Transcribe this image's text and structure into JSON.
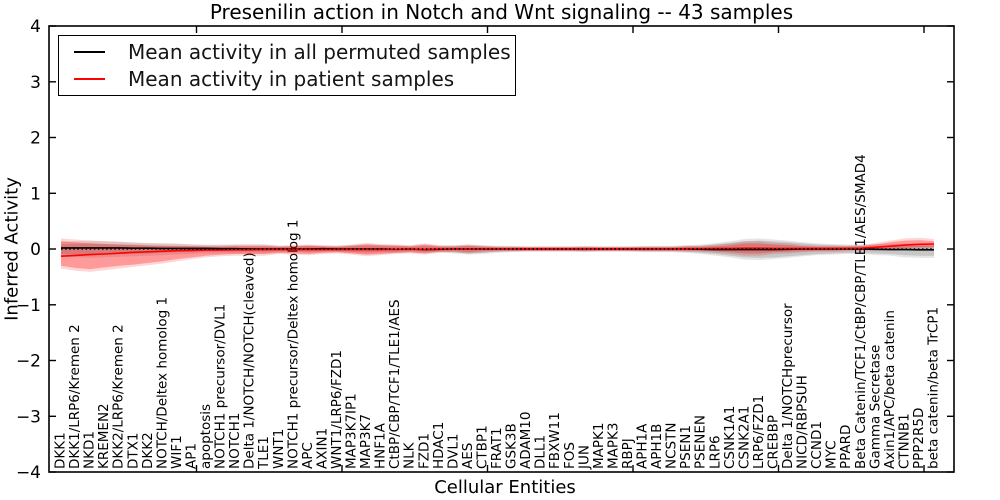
{
  "chart_data": {
    "type": "line",
    "title": "Presenilin action in Notch and Wnt signaling -- 43 samples",
    "xlabel": "Cellular Entities",
    "ylabel": "Inferred Activity",
    "ylim": [
      -4,
      4
    ],
    "yticks": [
      4,
      3,
      2,
      1,
      0,
      -1,
      -2,
      -3,
      -4
    ],
    "ytick_labels": [
      "4",
      "3",
      "2",
      "1",
      "0",
      "−1",
      "−2",
      "−3",
      "−4"
    ],
    "grid": false,
    "legend_position": "upper left",
    "zero_line": {
      "y": 0,
      "style": "dotted",
      "color": "#000000"
    },
    "categories": [
      "DKK1",
      "DKK1/LRP6/Kremen 2",
      "NKD1",
      "KREMEN2",
      "DKK2/LRP6/Kremen 2",
      "DTX1",
      "DKK2",
      "NOTCH/Deltex homolog 1",
      "WIF1",
      "AP1",
      "apoptosis",
      "NOTCH1 precursor/DVL1",
      "NOTCH1",
      "Delta 1/NOTCH/NOTCH(cleaved)",
      "TLE1",
      "WNT1",
      "NOTCH1 precursor/Deltex homolog 1",
      "APC",
      "AXIN1",
      "WNT1/LRP6/FZD1",
      "MAP3K7IP1",
      "MAP3K7",
      "HNF1A",
      "CtBP/CBP/TCF1/TLE1/AES",
      "NLK",
      "FZD1",
      "HDAC1",
      "DVL1",
      "AES",
      "CTBP1",
      "FRAT1",
      "GSK3B",
      "ADAM10",
      "DLL1",
      "FBXW11",
      "FOS",
      "JUN",
      "MAPK1",
      "MAPK3",
      "RBPJ",
      "APH1A",
      "APH1B",
      "NCSTN",
      "PSEN1",
      "PSENEN",
      "LRP6",
      "CSNK1A1",
      "CSNK2A1",
      "LRP6/FZD1",
      "CREBBP",
      "Delta 1/NOTCHprecursor",
      "NICD/RBPSUH",
      "CCND1",
      "MYC",
      "PPARD",
      "Beta Catenin/TCF1/CtBP/CBP/TLE1/AES/SMAD4",
      "Gamma Secretase",
      "Axin1/APC/beta catenin",
      "CTNNB1",
      "PPP2R5D",
      "beta catenin/beta TrCP1"
    ],
    "series": [
      {
        "name": "Mean activity in all permuted samples",
        "color": "#000000",
        "band_fill_inner": "rgba(0,0,0,0.13)",
        "band_fill_outer": "rgba(0,0,0,0.10)",
        "values": [
          0.02,
          0.02,
          0.02,
          0.02,
          0.02,
          0.015,
          0.015,
          0.01,
          0.01,
          0.01,
          0.01,
          0.005,
          0.005,
          0,
          0,
          0,
          0,
          0,
          0.005,
          0,
          0,
          0,
          0,
          -0.005,
          0,
          -0.01,
          -0.005,
          0,
          0,
          0,
          0,
          0,
          0,
          0,
          0,
          0,
          0,
          0,
          0,
          0,
          0,
          0,
          0,
          0,
          -0.005,
          -0.01,
          -0.01,
          -0.01,
          -0.01,
          -0.01,
          -0.005,
          0,
          0,
          0,
          0,
          0,
          -0.005,
          -0.01,
          -0.01,
          -0.015,
          -0.015
        ],
        "band_upper": [
          0.08,
          0.09,
          0.1,
          0.09,
          0.08,
          0.08,
          0.07,
          0.06,
          0.06,
          0.05,
          0.05,
          0.05,
          0.05,
          0.05,
          0.05,
          0.04,
          0.04,
          0.05,
          0.04,
          0.04,
          0.05,
          0.06,
          0.05,
          0.05,
          0.04,
          0.05,
          0.04,
          0.05,
          0.06,
          0.05,
          0.04,
          0.04,
          0.03,
          0.03,
          0.03,
          0.03,
          0.04,
          0.03,
          0.03,
          0.03,
          0.04,
          0.04,
          0.04,
          0.05,
          0.06,
          0.08,
          0.11,
          0.14,
          0.15,
          0.14,
          0.12,
          0.1,
          0.08,
          0.07,
          0.06,
          0.06,
          0.06,
          0.06,
          0.06,
          0.06,
          0.06
        ],
        "band_lower": [
          -0.09,
          -0.1,
          -0.11,
          -0.1,
          -0.09,
          -0.09,
          -0.08,
          -0.07,
          -0.06,
          -0.06,
          -0.05,
          -0.05,
          -0.05,
          -0.05,
          -0.05,
          -0.04,
          -0.04,
          -0.05,
          -0.04,
          -0.04,
          -0.05,
          -0.06,
          -0.05,
          -0.05,
          -0.04,
          -0.05,
          -0.04,
          -0.06,
          -0.08,
          -0.07,
          -0.05,
          -0.04,
          -0.03,
          -0.03,
          -0.03,
          -0.03,
          -0.04,
          -0.03,
          -0.03,
          -0.03,
          -0.04,
          -0.04,
          -0.04,
          -0.05,
          -0.07,
          -0.09,
          -0.12,
          -0.15,
          -0.16,
          -0.15,
          -0.13,
          -0.11,
          -0.09,
          -0.08,
          -0.07,
          -0.07,
          -0.08,
          -0.09,
          -0.11,
          -0.12,
          -0.12
        ]
      },
      {
        "name": "Mean activity in patient samples",
        "color": "#ff0000",
        "band_fill_inner": "rgba(255,0,0,0.28)",
        "band_fill_outer": "rgba(255,0,0,0.16)",
        "values": [
          -0.13,
          -0.115,
          -0.1,
          -0.09,
          -0.075,
          -0.06,
          -0.05,
          -0.04,
          -0.03,
          -0.025,
          -0.02,
          -0.02,
          -0.015,
          -0.015,
          -0.01,
          -0.01,
          -0.01,
          -0.01,
          -0.01,
          -0.01,
          -0.01,
          -0.01,
          -0.01,
          -0.005,
          -0.005,
          -0.005,
          0,
          0,
          0,
          0,
          0,
          0,
          0,
          0,
          0,
          0,
          0,
          0,
          0,
          0,
          0,
          0,
          0,
          0.005,
          0.005,
          0.01,
          0.01,
          0.015,
          0.015,
          0.01,
          0.01,
          0.01,
          0.01,
          0.01,
          0.01,
          0.015,
          0.03,
          0.05,
          0.07,
          0.085,
          0.09
        ],
        "band_upper": [
          0.14,
          0.12,
          0.1,
          0.09,
          0.08,
          0.07,
          0.06,
          0.06,
          0.05,
          0.05,
          0.04,
          0.04,
          0.05,
          0.05,
          0.05,
          0.04,
          0.05,
          0.06,
          0.05,
          0.04,
          0.06,
          0.08,
          0.07,
          0.06,
          0.05,
          0.08,
          0.05,
          0.04,
          0.06,
          0.04,
          0.03,
          0.03,
          0.03,
          0.03,
          0.03,
          0.03,
          0.03,
          0.03,
          0.03,
          0.03,
          0.03,
          0.03,
          0.03,
          0.04,
          0.04,
          0.05,
          0.07,
          0.1,
          0.1,
          0.08,
          0.07,
          0.05,
          0.04,
          0.04,
          0.04,
          0.05,
          0.08,
          0.12,
          0.15,
          0.16,
          0.14
        ],
        "band_lower": [
          -0.3,
          -0.34,
          -0.36,
          -0.33,
          -0.3,
          -0.28,
          -0.25,
          -0.22,
          -0.18,
          -0.15,
          -0.12,
          -0.1,
          -0.09,
          -0.09,
          -0.09,
          -0.07,
          -0.08,
          -0.09,
          -0.07,
          -0.06,
          -0.08,
          -0.1,
          -0.09,
          -0.07,
          -0.06,
          -0.08,
          -0.05,
          -0.04,
          -0.06,
          -0.04,
          -0.03,
          -0.03,
          -0.03,
          -0.03,
          -0.03,
          -0.03,
          -0.03,
          -0.03,
          -0.03,
          -0.03,
          -0.03,
          -0.03,
          -0.03,
          -0.03,
          -0.03,
          -0.04,
          -0.06,
          -0.08,
          -0.08,
          -0.06,
          -0.05,
          -0.04,
          -0.03,
          -0.03,
          -0.02,
          -0.01,
          0,
          0.01,
          0.02,
          0.03,
          0.03
        ]
      }
    ],
    "band_outer_pad": [
      0.05,
      0.05,
      0.05,
      0.05,
      0.05,
      0.04,
      0.04,
      0.04,
      0.04,
      0.03,
      0.03,
      0.03,
      0.03,
      0.03,
      0.03,
      0.02,
      0.02,
      0.02,
      0.02,
      0.02,
      0.02,
      0.03,
      0.02,
      0.02,
      0.02,
      0.02,
      0.02,
      0.02,
      0.02,
      0.02,
      0.02,
      0.015,
      0.015,
      0.015,
      0.015,
      0.015,
      0.015,
      0.015,
      0.015,
      0.015,
      0.015,
      0.015,
      0.015,
      0.02,
      0.02,
      0.03,
      0.03,
      0.04,
      0.04,
      0.03,
      0.03,
      0.02,
      0.02,
      0.02,
      0.02,
      0.02,
      0.03,
      0.03,
      0.04,
      0.04,
      0.04
    ]
  }
}
